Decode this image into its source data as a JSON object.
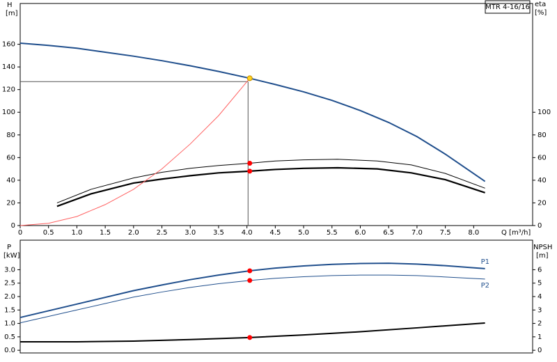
{
  "chart_data": [
    {
      "type": "line",
      "title": "MTR 4-16/16",
      "y_label": "H",
      "y_unit": "[m]",
      "y2_label": "eta",
      "y2_unit": "[%]",
      "x_label": "Q [m³/h]",
      "xlim": [
        0,
        9.04
      ],
      "xticks": [
        {
          "value": 0,
          "label": "0"
        },
        0.5,
        {
          "value": 1,
          "label": "1.0"
        },
        1.5,
        {
          "value": 2,
          "label": "2.0"
        },
        2.5,
        {
          "value": 3,
          "label": "3.0"
        },
        3.5,
        {
          "value": 4,
          "label": "4.0"
        },
        4.5,
        {
          "value": 5,
          "label": "5.0"
        },
        5.5,
        {
          "value": 6,
          "label": "6.0"
        },
        6.5,
        {
          "value": 7,
          "label": "7.0"
        },
        7.5,
        {
          "value": 8,
          "label": "8.0"
        }
      ],
      "ylim": [
        0,
        196
      ],
      "yticks": [
        0,
        20,
        40,
        60,
        80,
        100,
        120,
        140,
        160
      ],
      "y2lim": [
        0,
        196
      ],
      "y2ticks": [
        0,
        20,
        40,
        60,
        80,
        100
      ],
      "series": [
        {
          "color": "#1f4e8c",
          "width": 2,
          "x": [
            0,
            0.5,
            1,
            1.5,
            2,
            2.5,
            3,
            3.5,
            4.05,
            4.5,
            5,
            5.5,
            6,
            6.5,
            7,
            7.5,
            8.2
          ],
          "values": [
            161,
            159,
            156.5,
            153,
            149.5,
            145.5,
            141,
            136,
            130,
            124.5,
            118,
            110.5,
            101.5,
            91,
            78.5,
            63,
            39
          ]
        },
        {
          "color": "#000000",
          "width": 1,
          "axis": "y2",
          "x": [
            0.65,
            1.25,
            2,
            2.5,
            3,
            3.5,
            4.05,
            4.5,
            5,
            5.6,
            6.3,
            6.9,
            7.5,
            8.2
          ],
          "values": [
            20,
            32,
            42,
            47,
            50.5,
            53,
            55,
            57,
            58,
            58.5,
            57,
            53.5,
            46,
            33
          ]
        },
        {
          "color": "#000000",
          "width": 2.2,
          "axis": "y2",
          "x": [
            0.65,
            1.25,
            2,
            2.5,
            3,
            3.5,
            4.05,
            4.5,
            5,
            5.6,
            6.3,
            6.9,
            7.5,
            8.2
          ],
          "values": [
            17,
            28,
            37.5,
            41,
            44,
            46.5,
            48,
            49.5,
            50.5,
            51,
            50,
            46.5,
            40.5,
            29
          ]
        },
        {
          "color": "#ff6060",
          "width": 1,
          "x": [
            0,
            0.5,
            1,
            1.5,
            2,
            2.5,
            3,
            3.5,
            4.05
          ],
          "values": [
            0,
            2,
            8,
            18.5,
            32,
            50,
            72,
            97,
            130
          ]
        }
      ],
      "guide": {
        "x": 4.02,
        "y": 127,
        "color": "#555555"
      },
      "points": [
        {
          "x": 4.05,
          "y": 130,
          "color": "#ffd21f"
        },
        {
          "x": 4.05,
          "y": 55,
          "color": "#ff0000"
        },
        {
          "x": 4.05,
          "y": 48,
          "color": "#ff0000"
        }
      ]
    },
    {
      "type": "line",
      "y_label": "P",
      "y_unit": "[kW]",
      "y2_label": "NPSH",
      "y2_unit": "[m]",
      "xlim": [
        0,
        9.04
      ],
      "ylim": [
        -0.1,
        4.1
      ],
      "yticks": [
        {
          "value": 0,
          "label": "0.0"
        },
        0.5,
        {
          "value": 1,
          "label": "1.0"
        },
        1.5,
        {
          "value": 2,
          "label": "2.0"
        },
        2.5,
        {
          "value": 3,
          "label": "3.0"
        }
      ],
      "y2lim": [
        -0.2,
        8.2
      ],
      "y2ticks": [
        0,
        1,
        2,
        3,
        4,
        5,
        6
      ],
      "series": [
        {
          "name": "P1",
          "color": "#1f4e8c",
          "width": 2,
          "x": [
            0,
            1,
            2,
            2.5,
            3,
            3.5,
            4.05,
            4.5,
            5,
            5.5,
            6,
            6.5,
            7,
            7.5,
            8.2
          ],
          "values": [
            1.22,
            1.72,
            2.22,
            2.43,
            2.63,
            2.8,
            2.96,
            3.06,
            3.14,
            3.2,
            3.23,
            3.24,
            3.21,
            3.15,
            3.04
          ]
        },
        {
          "name": "P2",
          "color": "#1f4e8c",
          "width": 1,
          "x": [
            0,
            1,
            2,
            2.5,
            3,
            3.5,
            4.05,
            4.5,
            5,
            5.5,
            6,
            6.5,
            7,
            7.5,
            8.2
          ],
          "values": [
            1.02,
            1.5,
            1.98,
            2.17,
            2.34,
            2.48,
            2.6,
            2.68,
            2.74,
            2.78,
            2.8,
            2.8,
            2.78,
            2.73,
            2.65
          ]
        },
        {
          "color": "#000000",
          "width": 2,
          "axis": "y2",
          "x": [
            0,
            1,
            2,
            3,
            4.05,
            5,
            6,
            7,
            8.2
          ],
          "values": [
            0.63,
            0.63,
            0.68,
            0.8,
            0.95,
            1.14,
            1.38,
            1.67,
            2.03
          ]
        }
      ],
      "points": [
        {
          "x": 4.05,
          "y": 2.96,
          "color": "#ff0000"
        },
        {
          "x": 4.05,
          "y": 2.6,
          "color": "#ff0000"
        },
        {
          "x": 4.05,
          "y": 0.95,
          "color": "#ff0000",
          "axis": "y2"
        }
      ]
    }
  ]
}
